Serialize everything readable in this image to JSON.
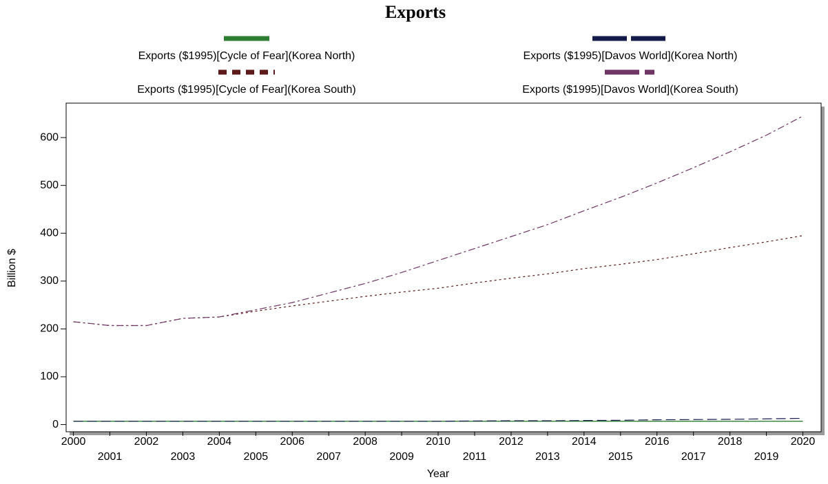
{
  "chart_data": {
    "type": "line",
    "title": "Exports",
    "x_label": "Year",
    "y_label": "Billion $",
    "x": [
      2000,
      2001,
      2002,
      2003,
      2004,
      2005,
      2006,
      2007,
      2008,
      2009,
      2010,
      2011,
      2012,
      2013,
      2014,
      2015,
      2016,
      2017,
      2018,
      2019,
      2020
    ],
    "xlim": [
      1999.8,
      2020.5
    ],
    "xticks": [
      2000,
      2001,
      2002,
      2003,
      2004,
      2005,
      2006,
      2007,
      2008,
      2009,
      2010,
      2011,
      2012,
      2013,
      2014,
      2015,
      2016,
      2017,
      2018,
      2019,
      2020
    ],
    "ylim": [
      -15,
      672
    ],
    "yticks": [
      0,
      100,
      200,
      300,
      400,
      500,
      600
    ],
    "series": [
      {
        "name": "Exports ($1995)[Cycle of Fear](Korea North)",
        "color": "#2e7d32",
        "dash": "solid",
        "values": [
          7,
          7,
          7,
          7,
          7,
          7,
          7,
          7,
          7,
          7,
          7,
          7,
          7,
          7,
          7,
          7,
          7,
          7,
          7,
          7,
          7
        ]
      },
      {
        "name": "Exports ($1995)[Davos World](Korea North)",
        "color": "#141a4a",
        "dash": "dashed",
        "values": [
          7,
          7,
          7,
          7,
          7,
          7,
          7,
          7,
          7,
          7,
          7,
          7.5,
          8,
          8,
          8.5,
          9,
          10,
          10.5,
          11,
          12,
          13
        ]
      },
      {
        "name": "Exports ($1995)[Cycle of Fear](Korea South)",
        "color": "#5c1a1a",
        "dash": "dotted",
        "values": [
          215,
          207,
          207,
          222,
          225,
          237,
          248,
          258,
          268,
          277,
          285,
          296,
          306,
          315,
          326,
          335,
          345,
          357,
          370,
          382,
          395
        ]
      },
      {
        "name": "Exports ($1995)[Davos World](Korea South)",
        "color": "#6e3463",
        "dash": "dashdot",
        "values": [
          215,
          207,
          207,
          222,
          225,
          240,
          255,
          275,
          295,
          318,
          343,
          368,
          393,
          418,
          447,
          475,
          505,
          537,
          570,
          605,
          645
        ]
      }
    ]
  }
}
